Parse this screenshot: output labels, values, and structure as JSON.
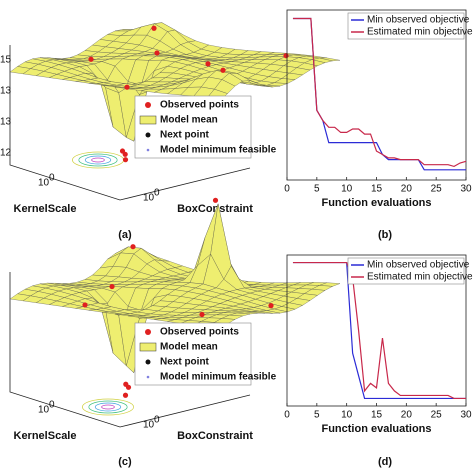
{
  "panels": [
    {
      "label": "(a)",
      "legend": [
        "Observed points",
        "Model mean",
        "Next point",
        "Model minimum feasible"
      ],
      "x_axis": "KernelScale",
      "y_axis": "BoxConstraint",
      "tick_base": "10",
      "tick_exp": "0",
      "z_ticks": [
        "15",
        "13",
        "13",
        "12"
      ]
    },
    {
      "label": "(c)",
      "legend": [
        "Observed points",
        "Model mean",
        "Next point",
        "Model minimum feasible"
      ],
      "x_axis": "KernelScale",
      "y_axis": "BoxConstraint",
      "tick_base": "10",
      "tick_exp": "0",
      "z_ticks": []
    }
  ],
  "chart_data": [
    {
      "type": "line",
      "label": "(b)",
      "x_label": "Function evaluations",
      "xlim": [
        0,
        30
      ],
      "xticks": [
        0,
        5,
        10,
        15,
        20,
        25,
        30
      ],
      "ylim": [
        0,
        1
      ],
      "legend": "upper right",
      "x": [
        1,
        2,
        3,
        4,
        5,
        6,
        7,
        8,
        9,
        10,
        11,
        12,
        13,
        14,
        15,
        16,
        17,
        18,
        19,
        20,
        21,
        22,
        23,
        24,
        25,
        26,
        27,
        28,
        29,
        30
      ],
      "series": [
        {
          "name": "Min observed objective",
          "color": "#2b2bd6",
          "values": [
            0.95,
            0.95,
            0.95,
            0.95,
            0.41,
            0.35,
            0.22,
            0.22,
            0.22,
            0.22,
            0.22,
            0.22,
            0.22,
            0.22,
            0.22,
            0.15,
            0.12,
            0.12,
            0.12,
            0.12,
            0.12,
            0.12,
            0.06,
            0.06,
            0.06,
            0.06,
            0.06,
            0.06,
            0.06,
            0.06
          ]
        },
        {
          "name": "Estimated min objective",
          "color": "#c8284a",
          "values": [
            0.95,
            0.95,
            0.95,
            0.95,
            0.41,
            0.35,
            0.31,
            0.31,
            0.28,
            0.28,
            0.3,
            0.3,
            0.27,
            0.27,
            0.17,
            0.15,
            0.13,
            0.13,
            0.12,
            0.12,
            0.12,
            0.12,
            0.09,
            0.09,
            0.09,
            0.09,
            0.09,
            0.08,
            0.1,
            0.11
          ]
        }
      ]
    },
    {
      "type": "line",
      "label": "(d)",
      "x_label": "Function evaluations",
      "xlim": [
        0,
        30
      ],
      "xticks": [
        0,
        5,
        10,
        15,
        20,
        25,
        30
      ],
      "ylim": [
        0,
        1
      ],
      "legend": "upper right",
      "x": [
        1,
        2,
        3,
        4,
        5,
        6,
        7,
        8,
        9,
        10,
        11,
        12,
        13,
        14,
        15,
        16,
        17,
        18,
        19,
        20,
        21,
        22,
        23,
        24,
        25,
        26,
        27,
        28,
        29,
        30
      ],
      "series": [
        {
          "name": "Min observed objective",
          "color": "#2b2bd6",
          "values": [
            0.95,
            0.95,
            0.95,
            0.95,
            0.95,
            0.95,
            0.95,
            0.95,
            0.95,
            0.95,
            0.35,
            0.2,
            0.05,
            0.05,
            0.05,
            0.05,
            0.05,
            0.05,
            0.05,
            0.05,
            0.05,
            0.05,
            0.05,
            0.05,
            0.05,
            0.05,
            0.05,
            0.05,
            0.05,
            0.05
          ]
        },
        {
          "name": "Estimated min objective",
          "color": "#c8284a",
          "values": [
            0.95,
            0.95,
            0.95,
            0.95,
            0.95,
            0.95,
            0.95,
            0.95,
            0.95,
            0.95,
            0.85,
            0.5,
            0.1,
            0.15,
            0.12,
            0.45,
            0.15,
            0.1,
            0.07,
            0.07,
            0.07,
            0.07,
            0.07,
            0.07,
            0.07,
            0.07,
            0.07,
            0.05,
            0.05,
            0.05
          ]
        }
      ]
    }
  ]
}
